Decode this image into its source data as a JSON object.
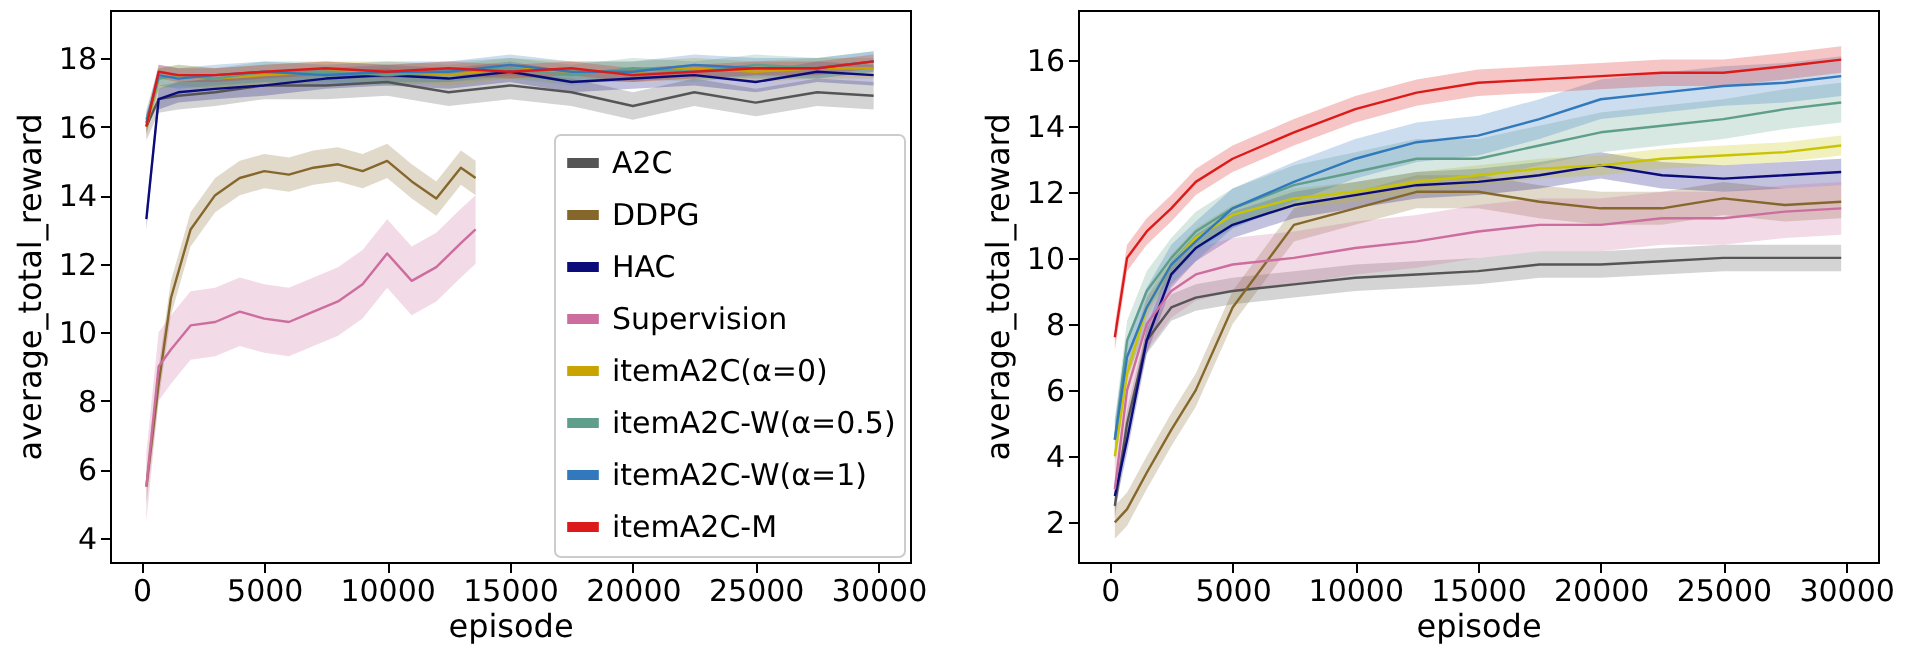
{
  "chart_data": [
    {
      "type": "line",
      "xlabel": "episode",
      "ylabel": "average_total_reward",
      "xlim": [
        -1280,
        31280
      ],
      "ylim": [
        3.3,
        19.4
      ],
      "xticks": [
        0,
        5000,
        10000,
        15000,
        20000,
        25000,
        30000
      ],
      "yticks": [
        4,
        6,
        8,
        10,
        12,
        14,
        16,
        18
      ],
      "legend": "bottom right",
      "x": [
        200,
        700,
        1500,
        3000,
        5000,
        7500,
        10000,
        12500,
        15000,
        17500,
        20000,
        22500,
        25000,
        27500,
        29800
      ],
      "series": [
        {
          "name": "A2C",
          "color": "#555555",
          "values": [
            16.0,
            16.8,
            16.9,
            17.0,
            17.2,
            17.2,
            17.3,
            17.0,
            17.2,
            17.0,
            16.6,
            17.0,
            16.7,
            17.0,
            16.9
          ],
          "lower": [
            15.6,
            16.4,
            16.5,
            16.6,
            16.8,
            16.8,
            16.9,
            16.6,
            16.8,
            16.6,
            16.2,
            16.6,
            16.3,
            16.6,
            16.5
          ],
          "upper": [
            16.4,
            17.2,
            17.3,
            17.4,
            17.6,
            17.6,
            17.7,
            17.4,
            17.6,
            17.4,
            17.0,
            17.4,
            17.1,
            17.4,
            17.3
          ]
        },
        {
          "name": "DDPG",
          "color": "#86672b",
          "x": [
            200,
            700,
            1200,
            2000,
            3000,
            4000,
            5000,
            6000,
            7000,
            8000,
            9000,
            10000,
            11000,
            12000,
            13000,
            13600
          ],
          "values": [
            5.5,
            8.5,
            11,
            13,
            14,
            14.5,
            14.7,
            14.6,
            14.8,
            14.9,
            14.7,
            15.0,
            14.4,
            13.9,
            14.8,
            14.5
          ],
          "lower": [
            5.0,
            8.0,
            10.5,
            12.5,
            13.5,
            14.0,
            14.2,
            14.1,
            14.3,
            14.4,
            14.2,
            14.5,
            13.9,
            13.4,
            14.3,
            14.0
          ],
          "upper": [
            6.0,
            9.0,
            11.5,
            13.5,
            14.5,
            15.0,
            15.2,
            15.1,
            15.3,
            15.4,
            15.2,
            15.5,
            14.9,
            14.4,
            15.3,
            15.0
          ]
        },
        {
          "name": "HAC",
          "color": "#0b0b7a",
          "values": [
            13.3,
            16.8,
            17.0,
            17.1,
            17.2,
            17.4,
            17.5,
            17.4,
            17.6,
            17.3,
            17.4,
            17.5,
            17.3,
            17.6,
            17.5
          ],
          "lower": [
            13.0,
            16.5,
            16.7,
            16.8,
            16.9,
            17.1,
            17.2,
            17.1,
            17.3,
            17.0,
            17.1,
            17.2,
            17.0,
            17.3,
            17.2
          ],
          "upper": [
            13.6,
            17.1,
            17.3,
            17.4,
            17.5,
            17.7,
            17.8,
            17.7,
            17.9,
            17.6,
            17.7,
            17.8,
            17.6,
            17.9,
            17.8
          ]
        },
        {
          "name": "Supervision",
          "color": "#cc6d9e",
          "x": [
            200,
            700,
            1200,
            2000,
            3000,
            4000,
            5000,
            6000,
            7000,
            8000,
            9000,
            10000,
            11000,
            12000,
            13000,
            13600
          ],
          "values": [
            5.5,
            9.0,
            9.5,
            10.2,
            10.3,
            10.6,
            10.4,
            10.3,
            10.6,
            10.9,
            11.4,
            12.3,
            11.5,
            11.9,
            12.6,
            13.0
          ],
          "lower": [
            4.5,
            8.0,
            8.5,
            9.2,
            9.3,
            9.6,
            9.4,
            9.3,
            9.6,
            9.9,
            10.4,
            11.3,
            10.5,
            10.9,
            11.6,
            12.0
          ],
          "upper": [
            6.5,
            10.0,
            10.5,
            11.2,
            11.3,
            11.6,
            11.4,
            11.3,
            11.6,
            11.9,
            12.4,
            13.3,
            12.5,
            12.9,
            13.6,
            14.0
          ]
        },
        {
          "name": "itemA2C(α=0)",
          "color": "#c9a400",
          "values": [
            16.0,
            17.4,
            17.5,
            17.4,
            17.5,
            17.6,
            17.6,
            17.5,
            17.7,
            17.6,
            17.6,
            17.7,
            17.6,
            17.7,
            17.7
          ],
          "lower": [
            15.7,
            17.1,
            17.2,
            17.1,
            17.2,
            17.3,
            17.3,
            17.2,
            17.4,
            17.3,
            17.3,
            17.4,
            17.3,
            17.4,
            17.4
          ],
          "upper": [
            16.3,
            17.7,
            17.8,
            17.7,
            17.8,
            17.9,
            17.9,
            17.8,
            18.0,
            17.9,
            17.9,
            18.0,
            17.9,
            18.0,
            18.0
          ]
        },
        {
          "name": "itemA2C-W(α=0.5)",
          "color": "#5f9e8a",
          "values": [
            16.2,
            17.4,
            17.5,
            17.4,
            17.6,
            17.6,
            17.5,
            17.6,
            17.7,
            17.5,
            17.7,
            17.6,
            17.8,
            17.7,
            17.9
          ],
          "lower": [
            15.9,
            17.1,
            17.2,
            17.1,
            17.3,
            17.3,
            17.2,
            17.3,
            17.4,
            17.2,
            17.4,
            17.3,
            17.5,
            17.4,
            17.6
          ],
          "upper": [
            16.5,
            17.7,
            17.8,
            17.7,
            17.9,
            17.9,
            17.8,
            17.9,
            18.0,
            17.8,
            18.0,
            17.9,
            18.1,
            18.0,
            18.2
          ]
        },
        {
          "name": "itemA2C-W(α=1)",
          "color": "#3178bd",
          "values": [
            16.1,
            17.5,
            17.4,
            17.5,
            17.6,
            17.5,
            17.6,
            17.6,
            17.8,
            17.6,
            17.6,
            17.8,
            17.7,
            17.7,
            17.9
          ],
          "lower": [
            15.8,
            17.2,
            17.1,
            17.2,
            17.3,
            17.2,
            17.3,
            17.3,
            17.5,
            17.3,
            17.3,
            17.5,
            17.4,
            17.4,
            17.6
          ],
          "upper": [
            16.4,
            17.8,
            17.7,
            17.8,
            17.9,
            17.8,
            17.9,
            17.9,
            18.1,
            17.9,
            17.9,
            18.1,
            18.0,
            18.0,
            18.2
          ]
        },
        {
          "name": "itemA2C-M",
          "color": "#dd1a1a",
          "values": [
            16.0,
            17.6,
            17.5,
            17.5,
            17.6,
            17.7,
            17.6,
            17.7,
            17.6,
            17.7,
            17.5,
            17.6,
            17.7,
            17.7,
            17.9
          ],
          "lower": [
            15.8,
            17.4,
            17.3,
            17.3,
            17.4,
            17.5,
            17.4,
            17.5,
            17.4,
            17.5,
            17.3,
            17.4,
            17.5,
            17.5,
            17.7
          ],
          "upper": [
            16.2,
            17.8,
            17.7,
            17.7,
            17.8,
            17.9,
            17.8,
            17.9,
            17.8,
            17.9,
            17.7,
            17.8,
            17.9,
            17.9,
            18.1
          ]
        }
      ]
    },
    {
      "type": "line",
      "xlabel": "episode",
      "ylabel": "average_total_reward",
      "xlim": [
        -1300,
        31300
      ],
      "ylim": [
        0.8,
        17.5
      ],
      "xticks": [
        0,
        5000,
        10000,
        15000,
        20000,
        25000,
        30000
      ],
      "yticks": [
        2,
        4,
        6,
        8,
        10,
        12,
        14,
        16
      ],
      "x": [
        200,
        700,
        1500,
        2500,
        3500,
        5000,
        7500,
        10000,
        12500,
        15000,
        17500,
        20000,
        22500,
        25000,
        27500,
        29800
      ],
      "series": [
        {
          "color": "#555555",
          "values": [
            2.5,
            5.0,
            7.5,
            8.5,
            8.8,
            9.0,
            9.2,
            9.4,
            9.5,
            9.6,
            9.8,
            9.8,
            9.9,
            10.0,
            10.0,
            10.0
          ],
          "lower": [
            2.1,
            4.6,
            7.1,
            8.1,
            8.4,
            8.6,
            8.8,
            9.0,
            9.1,
            9.2,
            9.4,
            9.4,
            9.5,
            9.6,
            9.6,
            9.6
          ],
          "upper": [
            2.9,
            5.4,
            7.9,
            8.9,
            9.2,
            9.4,
            9.6,
            9.8,
            9.9,
            10.0,
            10.2,
            10.2,
            10.3,
            10.4,
            10.4,
            10.4
          ]
        },
        {
          "color": "#86672b",
          "values": [
            2.0,
            2.4,
            3.5,
            4.8,
            6.0,
            8.5,
            11.0,
            11.5,
            12.0,
            12.0,
            11.7,
            11.5,
            11.5,
            11.8,
            11.6,
            11.7
          ],
          "lower": [
            1.5,
            1.9,
            3.0,
            4.3,
            5.5,
            8.0,
            10.5,
            11.0,
            11.5,
            11.5,
            11.2,
            11.0,
            11.0,
            11.3,
            11.1,
            11.2
          ],
          "upper": [
            2.5,
            2.9,
            4.0,
            5.3,
            6.5,
            9.0,
            11.5,
            12.0,
            12.5,
            12.5,
            12.2,
            12.0,
            12.0,
            12.3,
            12.1,
            12.2
          ]
        },
        {
          "color": "#0b0b7a",
          "values": [
            2.8,
            4.5,
            7.5,
            9.5,
            10.3,
            11.0,
            11.6,
            11.9,
            12.2,
            12.3,
            12.5,
            12.8,
            12.5,
            12.4,
            12.5,
            12.6
          ],
          "lower": [
            2.4,
            4.1,
            7.1,
            9.1,
            9.9,
            10.6,
            11.2,
            11.5,
            11.8,
            11.9,
            12.1,
            12.4,
            12.1,
            12.0,
            12.1,
            12.2
          ],
          "upper": [
            3.2,
            4.9,
            7.9,
            9.9,
            10.7,
            11.4,
            12.0,
            12.3,
            12.6,
            12.7,
            12.9,
            13.2,
            12.9,
            12.8,
            12.9,
            13.0
          ]
        },
        {
          "color": "#cc6d9e",
          "values": [
            3.0,
            6.0,
            8.0,
            9.0,
            9.5,
            9.8,
            10.0,
            10.3,
            10.5,
            10.8,
            11.0,
            11.0,
            11.2,
            11.2,
            11.4,
            11.5
          ],
          "lower": [
            2.2,
            5.2,
            7.2,
            8.2,
            8.7,
            9.0,
            9.2,
            9.5,
            9.7,
            10.0,
            10.2,
            10.2,
            10.4,
            10.4,
            10.6,
            10.7
          ],
          "upper": [
            3.8,
            6.8,
            8.8,
            9.8,
            10.3,
            10.6,
            10.8,
            11.1,
            11.3,
            11.6,
            11.8,
            11.8,
            12.0,
            12.0,
            12.2,
            12.3
          ]
        },
        {
          "color": "#c9c400",
          "values": [
            4.0,
            6.5,
            8.5,
            9.8,
            10.6,
            11.3,
            11.8,
            12.0,
            12.3,
            12.5,
            12.7,
            12.8,
            13.0,
            13.1,
            13.2,
            13.4
          ],
          "lower": [
            3.7,
            6.2,
            8.2,
            9.5,
            10.3,
            11.0,
            11.5,
            11.7,
            12.0,
            12.2,
            12.4,
            12.5,
            12.7,
            12.8,
            12.9,
            13.1
          ],
          "upper": [
            4.3,
            6.8,
            8.8,
            10.1,
            10.9,
            11.6,
            12.1,
            12.3,
            12.6,
            12.8,
            13.0,
            13.1,
            13.3,
            13.4,
            13.5,
            13.7
          ]
        },
        {
          "color": "#5f9e8a",
          "values": [
            4.5,
            7.5,
            9.0,
            10.0,
            10.8,
            11.5,
            12.2,
            12.6,
            13.0,
            13.0,
            13.4,
            13.8,
            14.0,
            14.2,
            14.5,
            14.7
          ],
          "lower": [
            3.9,
            6.9,
            8.4,
            9.4,
            10.2,
            10.9,
            11.6,
            12.0,
            12.4,
            12.4,
            12.8,
            13.2,
            13.4,
            13.6,
            13.9,
            14.1
          ],
          "upper": [
            5.1,
            8.1,
            9.6,
            10.6,
            11.4,
            12.1,
            12.8,
            13.2,
            13.6,
            13.6,
            14.0,
            14.4,
            14.6,
            14.8,
            15.1,
            15.3
          ]
        },
        {
          "color": "#3178bd",
          "values": [
            4.5,
            7.0,
            8.5,
            9.8,
            10.5,
            11.5,
            12.3,
            13.0,
            13.5,
            13.7,
            14.2,
            14.8,
            15.0,
            15.2,
            15.3,
            15.5
          ],
          "lower": [
            3.9,
            6.4,
            7.9,
            9.2,
            9.9,
            10.9,
            11.7,
            12.4,
            12.9,
            13.1,
            13.6,
            14.2,
            14.4,
            14.6,
            14.7,
            14.9
          ],
          "upper": [
            5.1,
            7.6,
            9.1,
            10.4,
            11.1,
            12.1,
            12.9,
            13.6,
            14.1,
            14.3,
            14.8,
            15.4,
            15.6,
            15.8,
            15.9,
            16.1
          ]
        },
        {
          "color": "#dd1a1a",
          "values": [
            7.6,
            10.0,
            10.8,
            11.5,
            12.3,
            13.0,
            13.8,
            14.5,
            15.0,
            15.3,
            15.4,
            15.5,
            15.6,
            15.6,
            15.8,
            16.0
          ],
          "lower": [
            7.2,
            9.6,
            10.4,
            11.1,
            11.9,
            12.6,
            13.4,
            14.1,
            14.6,
            14.9,
            15.0,
            15.1,
            15.2,
            15.2,
            15.4,
            15.6
          ],
          "upper": [
            8.0,
            10.4,
            11.2,
            11.9,
            12.7,
            13.4,
            14.2,
            14.9,
            15.4,
            15.7,
            15.8,
            15.9,
            16.0,
            16.0,
            16.2,
            16.4
          ]
        }
      ]
    }
  ]
}
